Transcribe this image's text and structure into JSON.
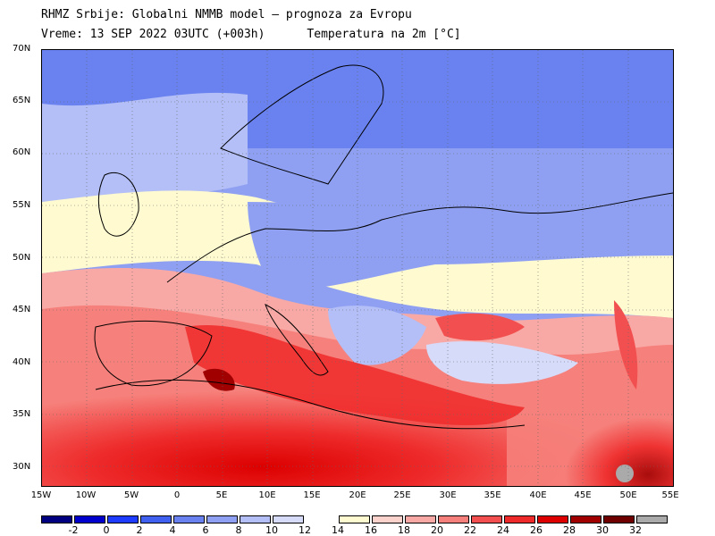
{
  "header": {
    "line1": "RHMZ Srbije: Globalni NMMB model — prognoza za Evropu",
    "line2_left": "Vreme: 13 SEP 2022 03UTC (+003h)",
    "line2_right": "Temperatura na 2m [°C]"
  },
  "map": {
    "lat_labels": [
      "70N",
      "65N",
      "60N",
      "55N",
      "50N",
      "45N",
      "40N",
      "35N",
      "30N"
    ],
    "lon_labels": [
      "15W",
      "10W",
      "5W",
      "0",
      "5E",
      "10E",
      "15E",
      "20E",
      "25E",
      "30E",
      "35E",
      "40E",
      "45E",
      "50E",
      "55E"
    ],
    "variable": "2m temperature",
    "units": "°C"
  },
  "colorbar": {
    "labels": [
      "-2",
      "0",
      "2",
      "4",
      "6",
      "8",
      "10",
      "12",
      "14",
      "16",
      "18",
      "20",
      "22",
      "24",
      "26",
      "28",
      "30",
      "32"
    ],
    "colors": [
      "#000080",
      "#0000cd",
      "#1e3cff",
      "#4060f0",
      "#6a82f0",
      "#8fa0f2",
      "#b3bff6",
      "#d6dbfa",
      "#ffffff",
      "#fffad0",
      "#fcd3cc",
      "#f9a9a5",
      "#f6807b",
      "#f25050",
      "#ee2a2a",
      "#dc0000",
      "#a00000",
      "#6e0000",
      "#aaaaaa"
    ]
  }
}
